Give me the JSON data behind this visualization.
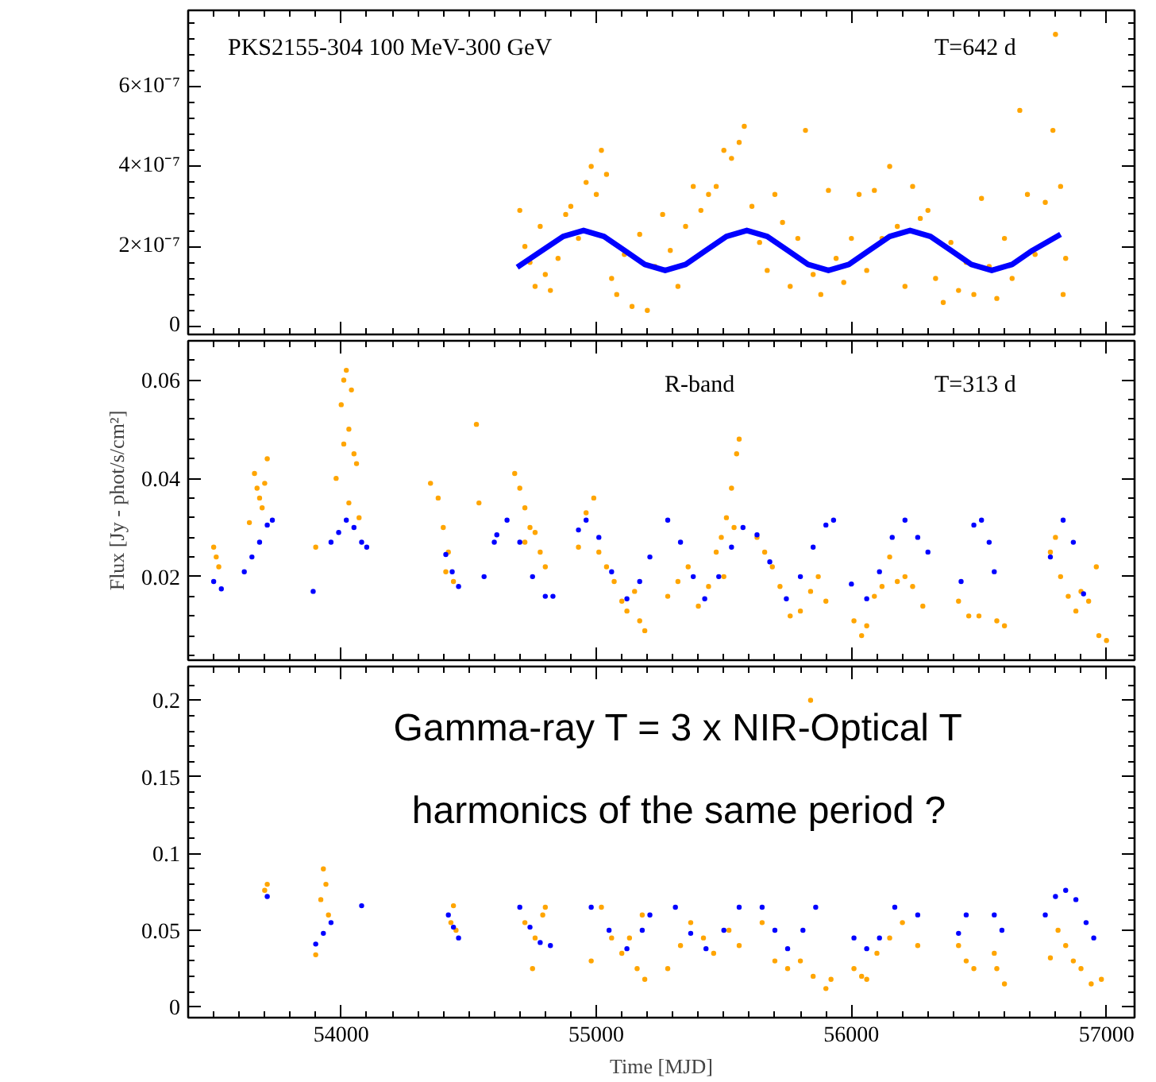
{
  "chart_data": [
    {
      "type": "scatter",
      "annotations": [
        "PKS2155-304   100 MeV-300 GeV",
        "T=642 d"
      ],
      "xlim": [
        53400,
        57110
      ],
      "xticks": [
        54000,
        55000,
        56000,
        57000
      ],
      "ylim": [
        -2e-08,
        7.9e-07
      ],
      "yticks": [
        {
          "value": 0,
          "label": "0"
        },
        {
          "value": 2e-07,
          "label": "2×10⁻⁷"
        },
        {
          "value": 4e-07,
          "label": "4×10⁻⁷"
        },
        {
          "value": 6e-07,
          "label": "6×10⁻⁷"
        }
      ],
      "tick_labels": "y",
      "series": [
        {
          "marker": "circle",
          "color": "#ffa500",
          "x": [
            54700,
            54720,
            54740,
            54760,
            54780,
            54800,
            54820,
            54850,
            54880,
            54900,
            54930,
            54960,
            54980,
            55000,
            55020,
            55040,
            55060,
            55080,
            55110,
            55140,
            55170,
            55200,
            55230,
            55260,
            55290,
            55320,
            55350,
            55380,
            55410,
            55440,
            55470,
            55500,
            55530,
            55560,
            55580,
            55610,
            55640,
            55670,
            55700,
            55730,
            55760,
            55790,
            55820,
            55850,
            55880,
            55910,
            55940,
            55970,
            56000,
            56030,
            56060,
            56090,
            56120,
            56150,
            56180,
            56210,
            56240,
            56270,
            56300,
            56330,
            56360,
            56390,
            56420,
            56450,
            56480,
            56510,
            56540,
            56570,
            56600,
            56630,
            56660,
            56690,
            56720,
            56760,
            56790,
            56800,
            56820,
            56840,
            56830
          ],
          "values": [
            2.9e-07,
            2e-07,
            1.6e-07,
            1e-07,
            2.5e-07,
            1.3e-07,
            9e-08,
            1.7e-07,
            2.8e-07,
            3e-07,
            2.2e-07,
            3.6e-07,
            4e-07,
            3.3e-07,
            4.4e-07,
            3.8e-07,
            1.2e-07,
            8e-08,
            1.8e-07,
            5e-08,
            2.3e-07,
            4e-08,
            1.5e-07,
            2.8e-07,
            1.9e-07,
            1e-07,
            2.5e-07,
            3.5e-07,
            2.9e-07,
            3.3e-07,
            3.5e-07,
            4.4e-07,
            4.2e-07,
            4.6e-07,
            5e-07,
            3e-07,
            2.1e-07,
            1.4e-07,
            3.3e-07,
            2.6e-07,
            1e-07,
            2.2e-07,
            4.9e-07,
            1.3e-07,
            8e-08,
            3.4e-07,
            1.7e-07,
            1.1e-07,
            2.2e-07,
            3.3e-07,
            1.4e-07,
            3.4e-07,
            2.2e-07,
            4e-07,
            2.5e-07,
            1e-07,
            3.5e-07,
            2.7e-07,
            2.9e-07,
            1.2e-07,
            6e-08,
            2.1e-07,
            9e-08,
            1.6e-07,
            8e-08,
            3.2e-07,
            1.5e-07,
            7e-08,
            2.2e-07,
            1.2e-07,
            5.4e-07,
            3.3e-07,
            1.8e-07,
            3.1e-07,
            4.9e-07,
            7.3e-07,
            3.5e-07,
            1.7e-07,
            8e-08
          ]
        },
        {
          "type": "line",
          "color": "#0000ff",
          "x": [
            54690,
            54800,
            54870,
            54950,
            55030,
            55110,
            55190,
            55270,
            55350,
            55430,
            55510,
            55590,
            55670,
            55750,
            55830,
            55910,
            55990,
            56070,
            56150,
            56230,
            56310,
            56390,
            56470,
            56550,
            56630,
            56710,
            56820
          ],
          "values": [
            1.48e-07,
            1.95e-07,
            2.25e-07,
            2.4e-07,
            2.25e-07,
            1.9e-07,
            1.55e-07,
            1.4e-07,
            1.55e-07,
            1.9e-07,
            2.25e-07,
            2.4e-07,
            2.25e-07,
            1.9e-07,
            1.55e-07,
            1.4e-07,
            1.55e-07,
            1.9e-07,
            2.25e-07,
            2.4e-07,
            2.25e-07,
            1.9e-07,
            1.55e-07,
            1.4e-07,
            1.55e-07,
            1.9e-07,
            2.3e-07
          ]
        }
      ]
    },
    {
      "type": "scatter",
      "annotations": [
        "R-band",
        "T=313 d"
      ],
      "ylabel": "Flux [Jy - phot/s/cm²]",
      "xlim": [
        53400,
        57110
      ],
      "xticks": [
        54000,
        55000,
        56000,
        57000
      ],
      "ylim": [
        0.003,
        0.068
      ],
      "yticks": [
        0.02,
        0.04,
        0.06
      ],
      "tick_labels": "y",
      "marker": "circle",
      "series": [
        {
          "color": "#ffa500",
          "x": [
            53510,
            53520,
            53500,
            53640,
            53660,
            53680,
            53700,
            53710,
            53690,
            53670,
            53900,
            53980,
            54000,
            54010,
            54020,
            54030,
            54040,
            54050,
            54060,
            54030,
            54070,
            54010,
            54350,
            54380,
            54400,
            54420,
            54440,
            54410,
            54530,
            54540,
            54680,
            54700,
            54720,
            54740,
            54760,
            54780,
            54800,
            54720,
            54930,
            54960,
            54990,
            55010,
            55040,
            55070,
            55100,
            55120,
            55150,
            55170,
            55190,
            55280,
            55320,
            55360,
            55400,
            55440,
            55470,
            55490,
            55510,
            55530,
            55550,
            55560,
            55540,
            55500,
            55630,
            55660,
            55690,
            55720,
            55760,
            55800,
            55840,
            55870,
            55900,
            56010,
            56040,
            56060,
            56090,
            56120,
            56150,
            56180,
            56210,
            56240,
            56280,
            56420,
            56460,
            56500,
            56570,
            56600,
            56780,
            56800,
            56820,
            56850,
            56880,
            56900,
            56930,
            56970,
            57000,
            56960
          ],
          "values": [
            0.024,
            0.022,
            0.026,
            0.031,
            0.041,
            0.036,
            0.039,
            0.044,
            0.034,
            0.038,
            0.026,
            0.04,
            0.055,
            0.06,
            0.062,
            0.05,
            0.058,
            0.045,
            0.043,
            0.035,
            0.032,
            0.047,
            0.039,
            0.036,
            0.03,
            0.025,
            0.019,
            0.021,
            0.051,
            0.035,
            0.041,
            0.038,
            0.034,
            0.03,
            0.029,
            0.025,
            0.022,
            0.027,
            0.026,
            0.033,
            0.036,
            0.025,
            0.022,
            0.019,
            0.015,
            0.013,
            0.017,
            0.011,
            0.009,
            0.016,
            0.019,
            0.022,
            0.014,
            0.018,
            0.025,
            0.028,
            0.032,
            0.038,
            0.045,
            0.048,
            0.03,
            0.02,
            0.028,
            0.025,
            0.022,
            0.018,
            0.012,
            0.013,
            0.017,
            0.02,
            0.015,
            0.011,
            0.008,
            0.01,
            0.016,
            0.018,
            0.024,
            0.019,
            0.02,
            0.018,
            0.014,
            0.015,
            0.012,
            0.012,
            0.011,
            0.01,
            0.025,
            0.028,
            0.02,
            0.016,
            0.013,
            0.017,
            0.015,
            0.008,
            0.007,
            0.022
          ]
        },
        {
          "color": "#0000ff",
          "x": [
            53500,
            53530,
            53620,
            53650,
            53680,
            53710,
            53730,
            53890,
            53960,
            53990,
            54020,
            54050,
            54080,
            54100,
            54410,
            54435,
            54460,
            54560,
            54600,
            54610,
            54650,
            54700,
            54750,
            54800,
            54830,
            54930,
            54960,
            55010,
            55060,
            55120,
            55170,
            55210,
            55280,
            55330,
            55380,
            55425,
            55480,
            55530,
            55575,
            55630,
            55680,
            55745,
            55800,
            55850,
            55900,
            55930,
            56000,
            56060,
            56110,
            56160,
            56210,
            56260,
            56300,
            56430,
            56480,
            56510,
            56540,
            56560,
            56780,
            56830,
            56870,
            56910
          ],
          "values": [
            0.019,
            0.0175,
            0.021,
            0.024,
            0.027,
            0.0305,
            0.0315,
            0.017,
            0.027,
            0.029,
            0.0315,
            0.03,
            0.027,
            0.026,
            0.0245,
            0.021,
            0.018,
            0.02,
            0.027,
            0.0285,
            0.0315,
            0.027,
            0.02,
            0.016,
            0.016,
            0.0295,
            0.0315,
            0.028,
            0.021,
            0.0155,
            0.019,
            0.024,
            0.0315,
            0.027,
            0.02,
            0.0155,
            0.02,
            0.026,
            0.03,
            0.0285,
            0.023,
            0.0155,
            0.02,
            0.026,
            0.0305,
            0.0315,
            0.0185,
            0.0155,
            0.021,
            0.028,
            0.0315,
            0.028,
            0.025,
            0.019,
            0.0305,
            0.0315,
            0.027,
            0.021,
            0.024,
            0.0315,
            0.027,
            0.0165
          ]
        }
      ]
    },
    {
      "type": "scatter",
      "annotations": [
        "Gamma-ray T = 3 x NIR-Optical T",
        "harmonics of the same period ?"
      ],
      "xlabel": "Time [MJD]",
      "xlim": [
        53400,
        57110
      ],
      "xticks": [
        54000,
        55000,
        56000,
        57000
      ],
      "ylim": [
        -0.007,
        0.222
      ],
      "yticks": [
        0,
        0.05,
        0.1,
        0.15,
        0.2
      ],
      "marker": "circle",
      "series": [
        {
          "color": "#ffa500",
          "x": [
            53710,
            53700,
            53900,
            53920,
            53930,
            53950,
            53940,
            54440,
            54430,
            54450,
            54720,
            54750,
            54760,
            54790,
            54800,
            54980,
            55020,
            55060,
            55100,
            55130,
            55160,
            55190,
            55180,
            55280,
            55330,
            55370,
            55420,
            55460,
            55520,
            55560,
            55650,
            55700,
            55750,
            55800,
            55850,
            55900,
            55920,
            55840,
            56010,
            56040,
            56060,
            56100,
            56150,
            56200,
            56260,
            56420,
            56450,
            56480,
            56570,
            56600,
            56560,
            56780,
            56810,
            56840,
            56870,
            56900,
            56940,
            56980
          ],
          "values": [
            0.08,
            0.076,
            0.034,
            0.07,
            0.09,
            0.06,
            0.08,
            0.066,
            0.055,
            0.05,
            0.055,
            0.025,
            0.045,
            0.06,
            0.065,
            0.03,
            0.065,
            0.045,
            0.035,
            0.045,
            0.025,
            0.018,
            0.06,
            0.025,
            0.04,
            0.055,
            0.045,
            0.035,
            0.05,
            0.04,
            0.055,
            0.03,
            0.025,
            0.03,
            0.02,
            0.012,
            0.018,
            0.2,
            0.025,
            0.02,
            0.018,
            0.035,
            0.045,
            0.055,
            0.04,
            0.04,
            0.03,
            0.025,
            0.025,
            0.015,
            0.035,
            0.032,
            0.05,
            0.04,
            0.03,
            0.025,
            0.015,
            0.018
          ]
        },
        {
          "color": "#0000ff",
          "x": [
            53710,
            53900,
            53930,
            53960,
            54080,
            54420,
            54440,
            54460,
            54700,
            54740,
            54780,
            54820,
            54980,
            55050,
            55120,
            55180,
            55210,
            55310,
            55370,
            55430,
            55500,
            55560,
            55650,
            55700,
            55750,
            55810,
            55860,
            56010,
            56060,
            56110,
            56170,
            56260,
            56420,
            56450,
            56560,
            56590,
            56760,
            56800,
            56840,
            56880,
            56920,
            56950
          ],
          "values": [
            0.072,
            0.041,
            0.048,
            0.055,
            0.066,
            0.06,
            0.052,
            0.045,
            0.065,
            0.052,
            0.042,
            0.04,
            0.065,
            0.05,
            0.038,
            0.05,
            0.06,
            0.065,
            0.048,
            0.038,
            0.05,
            0.065,
            0.065,
            0.05,
            0.038,
            0.05,
            0.065,
            0.045,
            0.038,
            0.045,
            0.065,
            0.06,
            0.048,
            0.06,
            0.06,
            0.05,
            0.06,
            0.072,
            0.076,
            0.07,
            0.055,
            0.045
          ]
        }
      ]
    }
  ]
}
